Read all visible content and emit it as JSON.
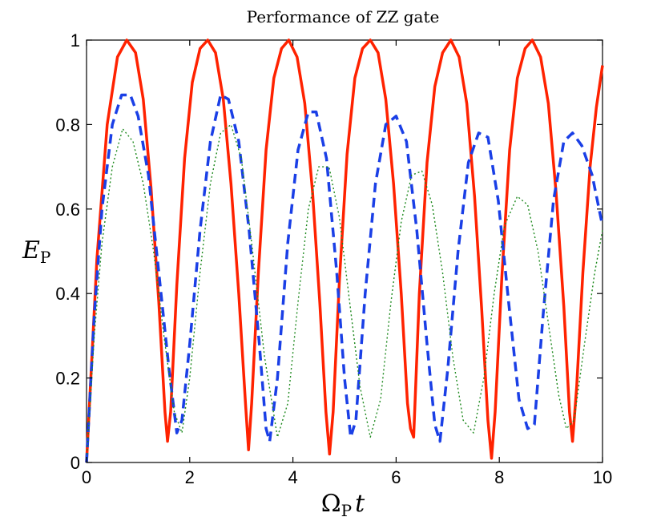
{
  "chart_data": {
    "type": "line",
    "title": "Performance of ZZ gate",
    "xlabel_main": "Ω",
    "xlabel_sub": "P",
    "xlabel_var": "t",
    "ylabel_main": "E",
    "ylabel_sub": "P",
    "xlim": [
      0,
      10
    ],
    "ylim": [
      0,
      1
    ],
    "xticks": [
      0,
      2,
      4,
      6,
      8,
      10
    ],
    "yticks": [
      0,
      0.2,
      0.4,
      0.6,
      0.8,
      1
    ],
    "xtick_labels": [
      "0",
      "2",
      "4",
      "6",
      "8",
      "10"
    ],
    "ytick_labels": [
      "0",
      "0.2",
      "0.4",
      "0.6",
      "0.8",
      "1"
    ],
    "series": [
      {
        "name": "solid",
        "style": "solid",
        "color": "#ff2200",
        "points": [
          [
            0,
            0
          ],
          [
            0.2,
            0.48
          ],
          [
            0.4,
            0.8
          ],
          [
            0.6,
            0.96
          ],
          [
            0.78,
            1.0
          ],
          [
            0.95,
            0.97
          ],
          [
            1.1,
            0.86
          ],
          [
            1.25,
            0.65
          ],
          [
            1.4,
            0.38
          ],
          [
            1.52,
            0.12
          ],
          [
            1.57,
            0.05
          ],
          [
            1.63,
            0.12
          ],
          [
            1.75,
            0.42
          ],
          [
            1.9,
            0.72
          ],
          [
            2.05,
            0.9
          ],
          [
            2.2,
            0.98
          ],
          [
            2.35,
            1.0
          ],
          [
            2.5,
            0.97
          ],
          [
            2.65,
            0.86
          ],
          [
            2.8,
            0.66
          ],
          [
            2.95,
            0.4
          ],
          [
            3.08,
            0.14
          ],
          [
            3.14,
            0.03
          ],
          [
            3.2,
            0.14
          ],
          [
            3.33,
            0.45
          ],
          [
            3.48,
            0.74
          ],
          [
            3.63,
            0.91
          ],
          [
            3.78,
            0.98
          ],
          [
            3.92,
            1.0
          ],
          [
            4.08,
            0.96
          ],
          [
            4.23,
            0.85
          ],
          [
            4.38,
            0.64
          ],
          [
            4.52,
            0.38
          ],
          [
            4.64,
            0.12
          ],
          [
            4.71,
            0.02
          ],
          [
            4.78,
            0.12
          ],
          [
            4.9,
            0.43
          ],
          [
            5.05,
            0.73
          ],
          [
            5.2,
            0.91
          ],
          [
            5.35,
            0.98
          ],
          [
            5.5,
            1.0
          ],
          [
            5.65,
            0.97
          ],
          [
            5.8,
            0.86
          ],
          [
            5.95,
            0.66
          ],
          [
            6.1,
            0.4
          ],
          [
            6.22,
            0.14
          ],
          [
            6.28,
            0.08
          ],
          [
            6.34,
            0.06
          ],
          [
            6.45,
            0.4
          ],
          [
            6.6,
            0.71
          ],
          [
            6.75,
            0.89
          ],
          [
            6.9,
            0.97
          ],
          [
            7.06,
            1.0
          ],
          [
            7.22,
            0.96
          ],
          [
            7.37,
            0.85
          ],
          [
            7.52,
            0.63
          ],
          [
            7.66,
            0.36
          ],
          [
            7.78,
            0.1
          ],
          [
            7.85,
            0.01
          ],
          [
            7.92,
            0.12
          ],
          [
            8.05,
            0.44
          ],
          [
            8.2,
            0.74
          ],
          [
            8.35,
            0.91
          ],
          [
            8.5,
            0.98
          ],
          [
            8.64,
            1.0
          ],
          [
            8.8,
            0.96
          ],
          [
            8.95,
            0.85
          ],
          [
            9.1,
            0.64
          ],
          [
            9.25,
            0.37
          ],
          [
            9.36,
            0.12
          ],
          [
            9.42,
            0.05
          ],
          [
            9.5,
            0.18
          ],
          [
            9.62,
            0.45
          ],
          [
            9.76,
            0.7
          ],
          [
            9.88,
            0.84
          ],
          [
            10,
            0.94
          ]
        ]
      },
      {
        "name": "dashed",
        "style": "dashed",
        "color": "#1a3fe6",
        "points": [
          [
            0,
            0
          ],
          [
            0.15,
            0.35
          ],
          [
            0.3,
            0.6
          ],
          [
            0.5,
            0.8
          ],
          [
            0.68,
            0.87
          ],
          [
            0.85,
            0.87
          ],
          [
            1.0,
            0.82
          ],
          [
            1.2,
            0.68
          ],
          [
            1.4,
            0.45
          ],
          [
            1.6,
            0.22
          ],
          [
            1.75,
            0.07
          ],
          [
            1.85,
            0.1
          ],
          [
            2.0,
            0.28
          ],
          [
            2.2,
            0.55
          ],
          [
            2.4,
            0.76
          ],
          [
            2.6,
            0.87
          ],
          [
            2.75,
            0.86
          ],
          [
            2.95,
            0.76
          ],
          [
            3.15,
            0.55
          ],
          [
            3.35,
            0.28
          ],
          [
            3.48,
            0.08
          ],
          [
            3.55,
            0.05
          ],
          [
            3.7,
            0.2
          ],
          [
            3.9,
            0.52
          ],
          [
            4.1,
            0.74
          ],
          [
            4.3,
            0.83
          ],
          [
            4.45,
            0.83
          ],
          [
            4.65,
            0.72
          ],
          [
            4.85,
            0.45
          ],
          [
            5.0,
            0.2
          ],
          [
            5.12,
            0.06
          ],
          [
            5.22,
            0.1
          ],
          [
            5.4,
            0.4
          ],
          [
            5.6,
            0.66
          ],
          [
            5.8,
            0.8
          ],
          [
            6.0,
            0.82
          ],
          [
            6.2,
            0.76
          ],
          [
            6.4,
            0.55
          ],
          [
            6.6,
            0.28
          ],
          [
            6.75,
            0.09
          ],
          [
            6.85,
            0.05
          ],
          [
            7.0,
            0.22
          ],
          [
            7.2,
            0.5
          ],
          [
            7.4,
            0.71
          ],
          [
            7.6,
            0.78
          ],
          [
            7.78,
            0.77
          ],
          [
            7.98,
            0.62
          ],
          [
            8.18,
            0.38
          ],
          [
            8.38,
            0.15
          ],
          [
            8.55,
            0.08
          ],
          [
            8.68,
            0.09
          ],
          [
            8.85,
            0.35
          ],
          [
            9.05,
            0.62
          ],
          [
            9.25,
            0.76
          ],
          [
            9.42,
            0.78
          ],
          [
            9.6,
            0.75
          ],
          [
            9.8,
            0.68
          ],
          [
            10,
            0.56
          ]
        ]
      },
      {
        "name": "dotted",
        "style": "dotted",
        "color": "#1f8a1f",
        "points": [
          [
            0,
            0
          ],
          [
            0.15,
            0.3
          ],
          [
            0.3,
            0.52
          ],
          [
            0.5,
            0.7
          ],
          [
            0.7,
            0.79
          ],
          [
            0.9,
            0.76
          ],
          [
            1.1,
            0.66
          ],
          [
            1.3,
            0.5
          ],
          [
            1.5,
            0.3
          ],
          [
            1.7,
            0.12
          ],
          [
            1.85,
            0.07
          ],
          [
            2.0,
            0.2
          ],
          [
            2.2,
            0.45
          ],
          [
            2.4,
            0.66
          ],
          [
            2.6,
            0.78
          ],
          [
            2.8,
            0.8
          ],
          [
            3.0,
            0.72
          ],
          [
            3.2,
            0.52
          ],
          [
            3.45,
            0.25
          ],
          [
            3.7,
            0.06
          ],
          [
            3.9,
            0.14
          ],
          [
            4.1,
            0.38
          ],
          [
            4.3,
            0.6
          ],
          [
            4.5,
            0.7
          ],
          [
            4.7,
            0.7
          ],
          [
            4.9,
            0.58
          ],
          [
            5.1,
            0.38
          ],
          [
            5.3,
            0.18
          ],
          [
            5.5,
            0.06
          ],
          [
            5.7,
            0.15
          ],
          [
            5.9,
            0.38
          ],
          [
            6.1,
            0.57
          ],
          [
            6.3,
            0.68
          ],
          [
            6.5,
            0.69
          ],
          [
            6.7,
            0.61
          ],
          [
            6.9,
            0.45
          ],
          [
            7.1,
            0.25
          ],
          [
            7.3,
            0.1
          ],
          [
            7.5,
            0.07
          ],
          [
            7.7,
            0.2
          ],
          [
            7.9,
            0.4
          ],
          [
            8.1,
            0.56
          ],
          [
            8.35,
            0.63
          ],
          [
            8.55,
            0.61
          ],
          [
            8.75,
            0.5
          ],
          [
            8.95,
            0.33
          ],
          [
            9.15,
            0.16
          ],
          [
            9.3,
            0.08
          ],
          [
            9.45,
            0.1
          ],
          [
            9.65,
            0.28
          ],
          [
            9.85,
            0.45
          ],
          [
            10,
            0.55
          ]
        ]
      }
    ]
  }
}
